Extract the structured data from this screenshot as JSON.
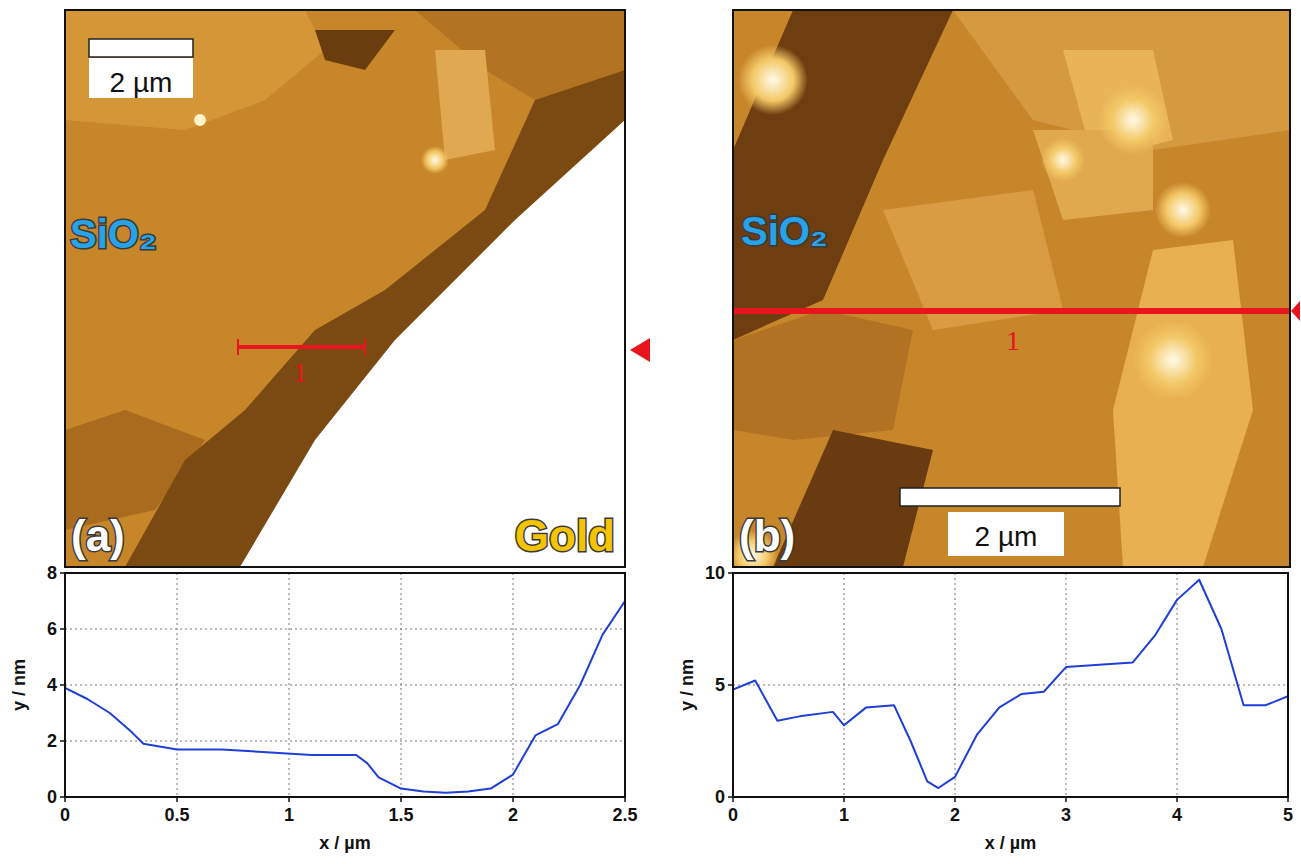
{
  "chart_data": [
    {
      "type": "line",
      "x_label": "x / µm",
      "y_label": "y / nm",
      "annotations": {
        "panel": "(a)",
        "materials": [
          "SiO₂",
          "Gold"
        ],
        "scale_bar": "2 µm",
        "profile": "1"
      },
      "x": [
        0,
        0.1,
        0.2,
        0.3,
        0.35,
        0.5,
        0.7,
        0.9,
        1.1,
        1.3,
        1.35,
        1.4,
        1.5,
        1.6,
        1.7,
        1.8,
        1.9,
        2.0,
        2.1,
        2.2,
        2.3,
        2.4,
        2.5
      ],
      "series": [
        {
          "color": "#1f3fd6",
          "values": [
            3.9,
            3.5,
            3.0,
            2.3,
            1.9,
            1.7,
            1.7,
            1.6,
            1.5,
            1.5,
            1.2,
            0.7,
            0.3,
            0.2,
            0.15,
            0.2,
            0.3,
            0.8,
            2.2,
            2.6,
            4.0,
            5.8,
            7.0
          ]
        }
      ],
      "xlim": [
        0,
        2.5
      ],
      "ylim": [
        0,
        8
      ],
      "xticks": [
        0,
        0.5,
        1,
        1.5,
        2,
        2.5
      ],
      "yticks": [
        0,
        2,
        4,
        6,
        8
      ],
      "grid": true
    },
    {
      "type": "line",
      "x_label": "x / µm",
      "y_label": "y / nm",
      "annotations": {
        "panel": "(b)",
        "materials": [
          "SiO₂"
        ],
        "scale_bar": "2 µm",
        "profile": "1"
      },
      "x": [
        0,
        0.2,
        0.4,
        0.6,
        0.9,
        1.0,
        1.2,
        1.45,
        1.6,
        1.75,
        1.85,
        2.0,
        2.2,
        2.4,
        2.6,
        2.8,
        3.0,
        3.3,
        3.6,
        3.8,
        4.0,
        4.2,
        4.4,
        4.6,
        4.8,
        5.0
      ],
      "series": [
        {
          "color": "#1f3fd6",
          "values": [
            4.8,
            5.2,
            3.4,
            3.6,
            3.8,
            3.2,
            4.0,
            4.1,
            2.5,
            0.7,
            0.4,
            0.9,
            2.8,
            4.0,
            4.6,
            4.7,
            5.8,
            5.9,
            6.0,
            7.2,
            8.8,
            9.7,
            7.5,
            4.1,
            4.1,
            4.5
          ]
        }
      ],
      "xlim": [
        0,
        5
      ],
      "ylim": [
        0,
        10
      ],
      "xticks": [
        0,
        1,
        2,
        3,
        4,
        5
      ],
      "yticks": [
        0,
        5,
        10
      ],
      "grid": true
    }
  ]
}
